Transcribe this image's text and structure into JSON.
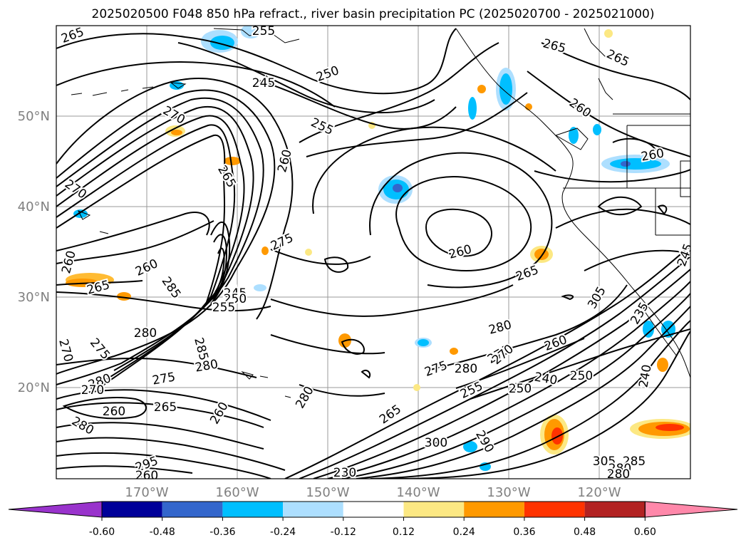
{
  "title": "2025020500 F048 850 hPa refract., river basin precipitation PC (2025020700 - 2025021000)",
  "axes": {
    "lon_labels": [
      "170°W",
      "160°W",
      "150°W",
      "140°W",
      "130°W",
      "120°W"
    ],
    "lat_labels": [
      "50°N",
      "40°N",
      "30°N",
      "20°N"
    ]
  },
  "colorbar": {
    "colors": [
      "#9933cc",
      "#000099",
      "#3366cc",
      "#00bfff",
      "#addfff",
      "#ffffff",
      "#fce883",
      "#ff9900",
      "#ff3300",
      "#b22222",
      "#ff88aa"
    ],
    "ticks": [
      "-0.60",
      "-0.48",
      "-0.36",
      "-0.24",
      "-0.12",
      "0.12",
      "0.24",
      "0.36",
      "0.48",
      "0.60"
    ]
  },
  "contour_labels": [
    "265",
    "255",
    "245",
    "250",
    "265",
    "265",
    "260",
    "270",
    "255",
    "260",
    "260",
    "270",
    "265",
    "275",
    "260",
    "260",
    "265",
    "260",
    "265",
    "285",
    "245",
    "250",
    "255",
    "280",
    "285",
    "280",
    "275",
    "270",
    "280",
    "270",
    "275",
    "280",
    "260",
    "265",
    "260",
    "280",
    "250",
    "255",
    "270",
    "250",
    "275",
    "280",
    "260",
    "280",
    "265",
    "290",
    "300",
    "235",
    "240",
    "245",
    "240",
    "230",
    "295",
    "300",
    "305",
    "285",
    "280",
    "260",
    "305",
    "270",
    "280"
  ],
  "map_features": [
    "grid-lines",
    "coastlines",
    "contour-lines",
    "shaded-precipitation-pc"
  ]
}
